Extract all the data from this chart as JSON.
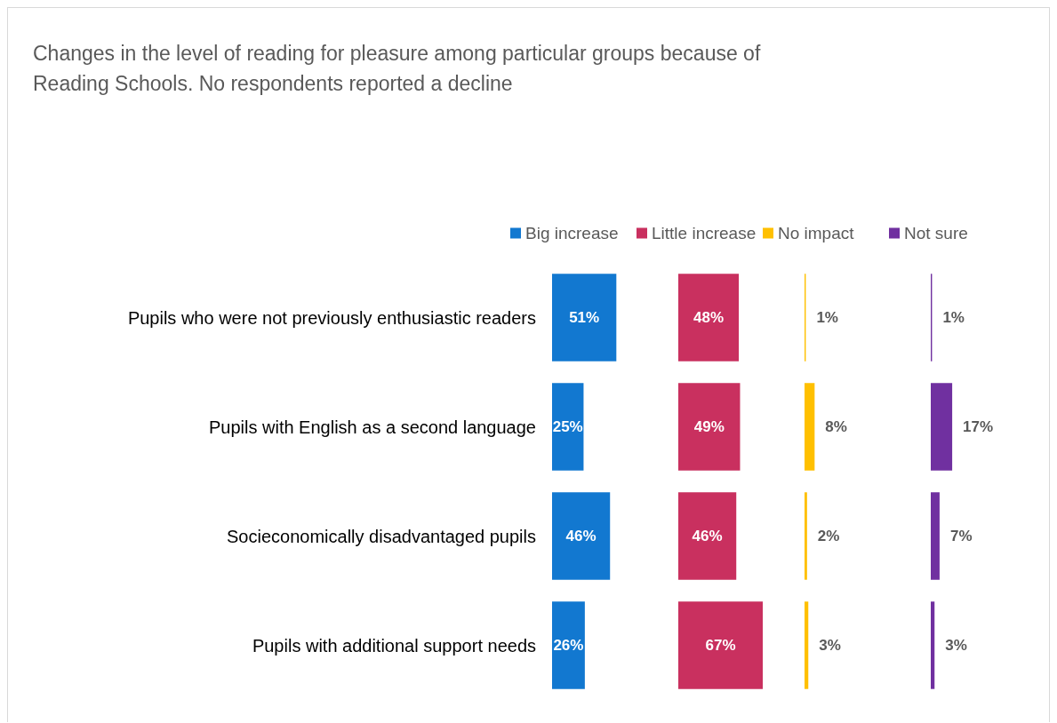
{
  "chart_data": [
    {
      "type": "bar",
      "orientation": "horizontal",
      "title": "Changes in the level of reading for pleasure among particular groups because of Reading Schools. No respondents reported a decline",
      "categories": [
        "Pupils who were not previously enthusiastic readers",
        "Pupils with English as a second language",
        "Socieconomically disadvantaged pupils",
        "Pupils with additional support needs"
      ],
      "tick_labels": "y",
      "legend": "top",
      "series": [
        {
          "name": "Big increase",
          "color": "#1278d0",
          "values": [
            51,
            25,
            46,
            26
          ],
          "value_labels": [
            "51%",
            "25%",
            "46%",
            "26%"
          ]
        }
      ]
    },
    {
      "type": "bar",
      "orientation": "horizontal",
      "categories": [
        null,
        null,
        null,
        null
      ],
      "tick_labels": false,
      "legend": "top",
      "series": [
        {
          "name": "Little increase",
          "color": "#c9305f",
          "values": [
            48,
            49,
            46,
            67
          ],
          "value_labels": [
            "48%",
            "49%",
            "46%",
            "67%"
          ]
        }
      ]
    },
    {
      "type": "bar",
      "orientation": "horizontal",
      "categories": [
        null,
        null,
        null,
        null
      ],
      "tick_labels": false,
      "legend": "top",
      "series": [
        {
          "name": "No impact",
          "color": "#ffc000",
          "values": [
            1,
            8,
            2,
            3
          ],
          "value_labels": [
            "1%",
            "8%",
            "2%",
            "3%"
          ]
        }
      ]
    },
    {
      "type": "bar",
      "orientation": "horizontal",
      "categories": [
        null,
        null,
        null,
        null
      ],
      "tick_labels": false,
      "legend": "top",
      "series": [
        {
          "name": "Not sure",
          "color": "#7030a0",
          "values": [
            1,
            17,
            7,
            3
          ],
          "value_labels": [
            "1%",
            "17%",
            "7%",
            "3%"
          ]
        }
      ]
    }
  ]
}
